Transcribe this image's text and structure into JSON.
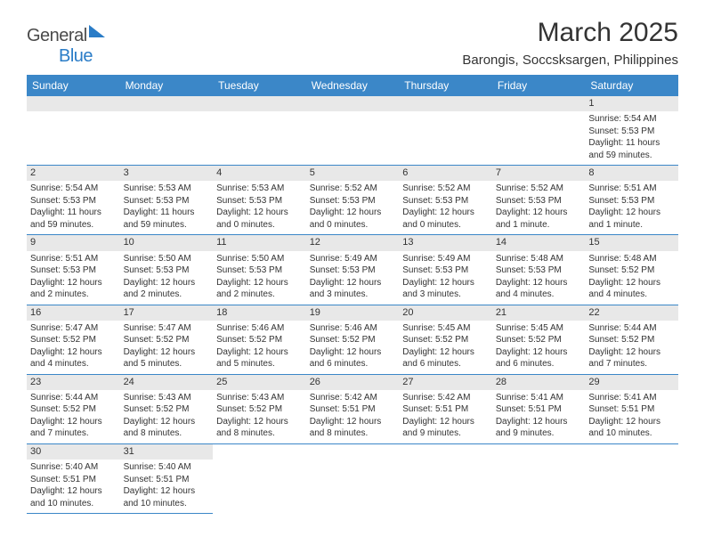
{
  "logo": {
    "text1": "General",
    "text2": "Blue"
  },
  "title": "March 2025",
  "location": "Barongis, Soccsksargen, Philippines",
  "day_headers": [
    "Sunday",
    "Monday",
    "Tuesday",
    "Wednesday",
    "Thursday",
    "Friday",
    "Saturday"
  ],
  "colors": {
    "header_bg": "#3b87c8",
    "daynum_bg": "#e8e8e8",
    "row_border": "#3b87c8"
  },
  "weeks": [
    [
      {
        "n": "",
        "sr": "",
        "ss": "",
        "dl": ""
      },
      {
        "n": "",
        "sr": "",
        "ss": "",
        "dl": ""
      },
      {
        "n": "",
        "sr": "",
        "ss": "",
        "dl": ""
      },
      {
        "n": "",
        "sr": "",
        "ss": "",
        "dl": ""
      },
      {
        "n": "",
        "sr": "",
        "ss": "",
        "dl": ""
      },
      {
        "n": "",
        "sr": "",
        "ss": "",
        "dl": ""
      },
      {
        "n": "1",
        "sr": "Sunrise: 5:54 AM",
        "ss": "Sunset: 5:53 PM",
        "dl": "Daylight: 11 hours and 59 minutes."
      }
    ],
    [
      {
        "n": "2",
        "sr": "Sunrise: 5:54 AM",
        "ss": "Sunset: 5:53 PM",
        "dl": "Daylight: 11 hours and 59 minutes."
      },
      {
        "n": "3",
        "sr": "Sunrise: 5:53 AM",
        "ss": "Sunset: 5:53 PM",
        "dl": "Daylight: 11 hours and 59 minutes."
      },
      {
        "n": "4",
        "sr": "Sunrise: 5:53 AM",
        "ss": "Sunset: 5:53 PM",
        "dl": "Daylight: 12 hours and 0 minutes."
      },
      {
        "n": "5",
        "sr": "Sunrise: 5:52 AM",
        "ss": "Sunset: 5:53 PM",
        "dl": "Daylight: 12 hours and 0 minutes."
      },
      {
        "n": "6",
        "sr": "Sunrise: 5:52 AM",
        "ss": "Sunset: 5:53 PM",
        "dl": "Daylight: 12 hours and 0 minutes."
      },
      {
        "n": "7",
        "sr": "Sunrise: 5:52 AM",
        "ss": "Sunset: 5:53 PM",
        "dl": "Daylight: 12 hours and 1 minute."
      },
      {
        "n": "8",
        "sr": "Sunrise: 5:51 AM",
        "ss": "Sunset: 5:53 PM",
        "dl": "Daylight: 12 hours and 1 minute."
      }
    ],
    [
      {
        "n": "9",
        "sr": "Sunrise: 5:51 AM",
        "ss": "Sunset: 5:53 PM",
        "dl": "Daylight: 12 hours and 2 minutes."
      },
      {
        "n": "10",
        "sr": "Sunrise: 5:50 AM",
        "ss": "Sunset: 5:53 PM",
        "dl": "Daylight: 12 hours and 2 minutes."
      },
      {
        "n": "11",
        "sr": "Sunrise: 5:50 AM",
        "ss": "Sunset: 5:53 PM",
        "dl": "Daylight: 12 hours and 2 minutes."
      },
      {
        "n": "12",
        "sr": "Sunrise: 5:49 AM",
        "ss": "Sunset: 5:53 PM",
        "dl": "Daylight: 12 hours and 3 minutes."
      },
      {
        "n": "13",
        "sr": "Sunrise: 5:49 AM",
        "ss": "Sunset: 5:53 PM",
        "dl": "Daylight: 12 hours and 3 minutes."
      },
      {
        "n": "14",
        "sr": "Sunrise: 5:48 AM",
        "ss": "Sunset: 5:53 PM",
        "dl": "Daylight: 12 hours and 4 minutes."
      },
      {
        "n": "15",
        "sr": "Sunrise: 5:48 AM",
        "ss": "Sunset: 5:52 PM",
        "dl": "Daylight: 12 hours and 4 minutes."
      }
    ],
    [
      {
        "n": "16",
        "sr": "Sunrise: 5:47 AM",
        "ss": "Sunset: 5:52 PM",
        "dl": "Daylight: 12 hours and 4 minutes."
      },
      {
        "n": "17",
        "sr": "Sunrise: 5:47 AM",
        "ss": "Sunset: 5:52 PM",
        "dl": "Daylight: 12 hours and 5 minutes."
      },
      {
        "n": "18",
        "sr": "Sunrise: 5:46 AM",
        "ss": "Sunset: 5:52 PM",
        "dl": "Daylight: 12 hours and 5 minutes."
      },
      {
        "n": "19",
        "sr": "Sunrise: 5:46 AM",
        "ss": "Sunset: 5:52 PM",
        "dl": "Daylight: 12 hours and 6 minutes."
      },
      {
        "n": "20",
        "sr": "Sunrise: 5:45 AM",
        "ss": "Sunset: 5:52 PM",
        "dl": "Daylight: 12 hours and 6 minutes."
      },
      {
        "n": "21",
        "sr": "Sunrise: 5:45 AM",
        "ss": "Sunset: 5:52 PM",
        "dl": "Daylight: 12 hours and 6 minutes."
      },
      {
        "n": "22",
        "sr": "Sunrise: 5:44 AM",
        "ss": "Sunset: 5:52 PM",
        "dl": "Daylight: 12 hours and 7 minutes."
      }
    ],
    [
      {
        "n": "23",
        "sr": "Sunrise: 5:44 AM",
        "ss": "Sunset: 5:52 PM",
        "dl": "Daylight: 12 hours and 7 minutes."
      },
      {
        "n": "24",
        "sr": "Sunrise: 5:43 AM",
        "ss": "Sunset: 5:52 PM",
        "dl": "Daylight: 12 hours and 8 minutes."
      },
      {
        "n": "25",
        "sr": "Sunrise: 5:43 AM",
        "ss": "Sunset: 5:52 PM",
        "dl": "Daylight: 12 hours and 8 minutes."
      },
      {
        "n": "26",
        "sr": "Sunrise: 5:42 AM",
        "ss": "Sunset: 5:51 PM",
        "dl": "Daylight: 12 hours and 8 minutes."
      },
      {
        "n": "27",
        "sr": "Sunrise: 5:42 AM",
        "ss": "Sunset: 5:51 PM",
        "dl": "Daylight: 12 hours and 9 minutes."
      },
      {
        "n": "28",
        "sr": "Sunrise: 5:41 AM",
        "ss": "Sunset: 5:51 PM",
        "dl": "Daylight: 12 hours and 9 minutes."
      },
      {
        "n": "29",
        "sr": "Sunrise: 5:41 AM",
        "ss": "Sunset: 5:51 PM",
        "dl": "Daylight: 12 hours and 10 minutes."
      }
    ],
    [
      {
        "n": "30",
        "sr": "Sunrise: 5:40 AM",
        "ss": "Sunset: 5:51 PM",
        "dl": "Daylight: 12 hours and 10 minutes."
      },
      {
        "n": "31",
        "sr": "Sunrise: 5:40 AM",
        "ss": "Sunset: 5:51 PM",
        "dl": "Daylight: 12 hours and 10 minutes."
      },
      {
        "n": "",
        "sr": "",
        "ss": "",
        "dl": ""
      },
      {
        "n": "",
        "sr": "",
        "ss": "",
        "dl": ""
      },
      {
        "n": "",
        "sr": "",
        "ss": "",
        "dl": ""
      },
      {
        "n": "",
        "sr": "",
        "ss": "",
        "dl": ""
      },
      {
        "n": "",
        "sr": "",
        "ss": "",
        "dl": ""
      }
    ]
  ]
}
